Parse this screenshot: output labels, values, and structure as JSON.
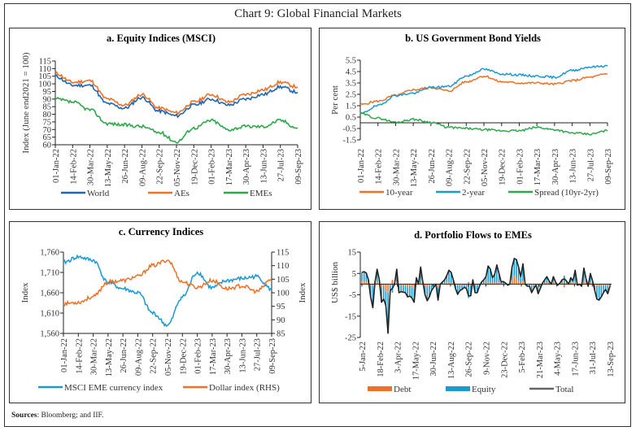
{
  "title": "Chart 9: Global Financial Markets",
  "sources_label": "Sources",
  "sources_text": ": Bloomberg; and IIF.",
  "colors": {
    "world": "#2166b0",
    "aes": "#ee7127",
    "emes": "#2ea84a",
    "ten_year": "#ee7127",
    "two_year": "#1a9ad0",
    "spread": "#2ea84a",
    "msci": "#1a9ad0",
    "dollar": "#ee7127",
    "debt": "#ee7127",
    "equity": "#1a9ad0",
    "total": "#222222"
  },
  "chart_data": [
    {
      "id": "a",
      "type": "line",
      "title": "a. Equity Indices (MSCI)",
      "ylabel": "Index (June end2021 = 100)",
      "xlabel": "",
      "ylim": [
        60,
        115
      ],
      "yticks": [
        60,
        65,
        70,
        75,
        80,
        85,
        90,
        95,
        100,
        105,
        110,
        115
      ],
      "xtick_labels": [
        "01-Jan-22",
        "14-Feb-22",
        "30-Mar-22",
        "13-May-22",
        "26-Jun-22",
        "09-Aug-22",
        "22-Sep-22",
        "05-Nov-22",
        "19-Dec-22",
        "01-Feb-23",
        "17-Mar-23",
        "30-Apr-23",
        "13-Jun-23",
        "27-Jul-23",
        "09-Sep-23"
      ],
      "x": [
        "01-Jan-22",
        "14-Feb-22",
        "30-Mar-22",
        "13-May-22",
        "26-Jun-22",
        "09-Aug-22",
        "22-Sep-22",
        "05-Nov-22",
        "19-Dec-22",
        "01-Feb-23",
        "17-Mar-23",
        "30-Apr-23",
        "13-Jun-23",
        "27-Jul-23",
        "09-Sep-23"
      ],
      "series": [
        {
          "name": "World",
          "color_key": "world",
          "values": [
            105,
            99,
            99,
            87,
            84,
            91,
            82,
            79,
            86,
            90,
            86,
            90,
            93,
            98,
            94.5
          ]
        },
        {
          "name": "AEs",
          "color_key": "aes",
          "values": [
            107,
            101,
            102,
            90,
            86,
            93,
            84,
            81,
            88,
            93,
            88,
            93,
            96,
            101,
            98
          ]
        },
        {
          "name": "EMEs",
          "color_key": "emes",
          "values": [
            90,
            88,
            83,
            74,
            73,
            72,
            68,
            62,
            71,
            76,
            70,
            72,
            72,
            76,
            71
          ]
        }
      ],
      "legend": [
        "World",
        "AEs",
        "EMEs"
      ],
      "legend_position": "bottom"
    },
    {
      "id": "b",
      "type": "line",
      "title": "b. US  Government Bond Yields",
      "ylabel": "Per cent",
      "xlabel": "",
      "ylim": [
        -1.5,
        5.5
      ],
      "yticks": [
        -1.5,
        -0.5,
        0.5,
        1.5,
        2.5,
        3.5,
        4.5,
        5.5
      ],
      "xtick_labels": [
        "01-Jan-22",
        "14-Feb-22",
        "30-Mar-22",
        "13-May-22",
        "26-Jun-22",
        "09-Aug-22",
        "22-Sep-22",
        "05-Nov-22",
        "19-Dec-22",
        "01-Feb-23",
        "17-Mar-23",
        "30-Apr-23",
        "13-Jun-23",
        "27-Jul-23",
        "09-Sep-23"
      ],
      "x": [
        "01-Jan-22",
        "14-Feb-22",
        "30-Mar-22",
        "13-May-22",
        "26-Jun-22",
        "09-Aug-22",
        "22-Sep-22",
        "05-Nov-22",
        "19-Dec-22",
        "01-Feb-23",
        "17-Mar-23",
        "30-Apr-23",
        "13-Jun-23",
        "27-Jul-23",
        "09-Sep-23"
      ],
      "series": [
        {
          "name": "10-year",
          "color_key": "ten_year",
          "values": [
            1.6,
            1.9,
            2.4,
            2.9,
            3.1,
            2.8,
            3.6,
            4.1,
            3.6,
            3.5,
            3.5,
            3.4,
            3.7,
            4.0,
            4.3
          ]
        },
        {
          "name": "2-year",
          "color_key": "two_year",
          "values": [
            0.8,
            1.5,
            2.4,
            2.6,
            3.1,
            3.2,
            4.1,
            4.7,
            4.3,
            4.2,
            4.1,
            4.0,
            4.6,
            4.9,
            5.0
          ]
        },
        {
          "name": "Spread (10yr-2yr)",
          "color_key": "spread",
          "values": [
            0.8,
            0.4,
            0.05,
            0.3,
            0.05,
            -0.4,
            -0.5,
            -0.6,
            -0.7,
            -0.7,
            -0.4,
            -0.6,
            -0.9,
            -1.0,
            -0.7
          ]
        }
      ],
      "legend": [
        "10-year",
        "2-year",
        "Spread (10yr-2yr)"
      ],
      "legend_position": "bottom"
    },
    {
      "id": "c",
      "type": "line",
      "title": "c. Currency Indices",
      "ylabel": "Index",
      "ylabel_right": "Index",
      "xlabel": "",
      "ylim": [
        1560,
        1760
      ],
      "ylim_right": [
        85,
        115
      ],
      "yticks": [
        "1,560",
        "1,610",
        "1,660",
        "1,710",
        "1,760"
      ],
      "yticks_right": [
        85,
        90,
        95,
        100,
        105,
        110,
        115
      ],
      "xtick_labels": [
        "01-Jan-22",
        "14-Feb-22",
        "30-Mar-22",
        "13-May-22",
        "26-Jun-22",
        "09-Aug-22",
        "22-Sep-22",
        "05-Nov-22",
        "19-Dec-22",
        "01-Feb-23",
        "17-Mar-23",
        "30-Apr-23",
        "13-Jun-23",
        "27-Jul-23",
        "09-Sep-23"
      ],
      "x": [
        "01-Jan-22",
        "14-Feb-22",
        "30-Mar-22",
        "13-May-22",
        "26-Jun-22",
        "09-Aug-22",
        "22-Sep-22",
        "05-Nov-22",
        "19-Dec-22",
        "01-Feb-23",
        "17-Mar-23",
        "30-Apr-23",
        "13-Jun-23",
        "27-Jul-23",
        "09-Sep-23"
      ],
      "series": [
        {
          "name": "MSCI EME currency index",
          "color_key": "msci",
          "axis": "left",
          "values": [
            1735,
            1748,
            1740,
            1685,
            1670,
            1660,
            1610,
            1580,
            1650,
            1710,
            1672,
            1690,
            1695,
            1700,
            1668
          ]
        },
        {
          "name": "Dollar index (RHS)",
          "color_key": "dollar",
          "axis": "right",
          "values": [
            96,
            96.5,
            98.5,
            104,
            104.5,
            106,
            110,
            112,
            104,
            102,
            104.5,
            101.5,
            102.5,
            100.5,
            105
          ]
        }
      ],
      "legend": [
        "MSCI EME currency index",
        "Dollar index (RHS)"
      ],
      "legend_position": "bottom"
    },
    {
      "id": "d",
      "type": "bar",
      "title": "d. Portfolio Flows to EMEs",
      "ylabel": "US$ billion",
      "xlabel": "",
      "ylim": [
        -25,
        15
      ],
      "yticks": [
        -25,
        -15,
        -5,
        5,
        15
      ],
      "xtick_labels": [
        "5-Jan-22",
        "18-Feb-22",
        "3-Apr-22",
        "17-May-22",
        "30-Jun-22",
        "13-Aug-22",
        "26-Sep-22",
        "9-Nov-22",
        "23-Dec-22",
        "5-Feb-23",
        "21-Mar-23",
        "4-May-23",
        "17-Jun-23",
        "31-Jul-23",
        "13-Sep-23"
      ],
      "total": [
        5.5,
        5.8,
        5.2,
        2,
        -6,
        -11,
        1,
        7,
        2,
        -8.5,
        -7,
        -10,
        -23,
        -3,
        -2,
        0,
        7,
        -4,
        -3.5,
        -3.8,
        -4,
        -6,
        -5.6,
        -6.5,
        -8.5,
        3,
        0,
        8,
        1,
        -5,
        -7.8,
        -6,
        -3,
        -1.5,
        0,
        -7.5,
        0,
        1,
        2,
        4,
        6.5,
        5.5,
        2,
        -2,
        -4.8,
        -3,
        -2.5,
        -1.5,
        -2,
        -5.5,
        -5.5,
        2,
        -4,
        -4,
        -1,
        1,
        2,
        3.5,
        8.5,
        7,
        3,
        4.5,
        9,
        5,
        1,
        1.2,
        0.5,
        -0.5,
        0,
        8,
        12,
        11.5,
        8,
        3.5,
        9.5,
        0,
        -1,
        -1,
        -4,
        -2,
        -0.5,
        -4.5,
        -2,
        0.5,
        2,
        3.5,
        1.5,
        0,
        3.5,
        1,
        -0.5,
        0.5,
        2,
        2.5,
        1.5,
        0,
        3,
        1.5,
        6.5,
        -0.5,
        0,
        -1,
        7.5,
        2.5,
        -1,
        5,
        1.5,
        -3,
        -7,
        -7.5,
        -6,
        -4,
        -2.5,
        -4.5,
        -1
      ],
      "debt": [
        1.5,
        1.5,
        1.2,
        0.5,
        -0.5,
        -1,
        0.3,
        1,
        0.5,
        -1.5,
        -1.2,
        -3.5,
        -4,
        -1,
        2,
        0.5,
        1,
        -0.5,
        -0.5,
        -0.5,
        -1,
        -1.5,
        -1,
        -1.5,
        -2,
        0.5,
        0,
        0.5,
        0,
        -1,
        -1.5,
        -1,
        -0.5,
        0,
        0,
        -1.5,
        0,
        0.3,
        0.5,
        0.8,
        0.8,
        0.6,
        0.3,
        -0.3,
        -0.5,
        -0.5,
        -0.5,
        -0.3,
        -0.5,
        1,
        -0.8,
        0.5,
        -0.5,
        -0.5,
        -0.3,
        0.3,
        0.5,
        0.5,
        1,
        0.8,
        0.5,
        0.8,
        1,
        0.8,
        0.3,
        0.3,
        0.2,
        0,
        0,
        2,
        4,
        3,
        1.5,
        0.5,
        1.5,
        0,
        -0.3,
        -0.3,
        -0.8,
        -0.5,
        0,
        -1,
        -0.5,
        0.5,
        0.5,
        0.5,
        0.3,
        0,
        1.5,
        0.3,
        -0.2,
        0.3,
        0.5,
        -1.5,
        0.5,
        0,
        0.8,
        0.5,
        1,
        0,
        0,
        0,
        1.5,
        0.8,
        -0.3,
        1,
        0.3,
        -0.5,
        -1,
        -1,
        -1,
        -0.5,
        -0.5,
        -0.8,
        -0.3
      ],
      "legend": [
        "Debt",
        "Equity",
        "Total"
      ],
      "legend_position": "bottom"
    }
  ],
  "footer": {
    "sources_label": "Sources",
    "sources_text": ": Bloomberg; and IIF."
  }
}
